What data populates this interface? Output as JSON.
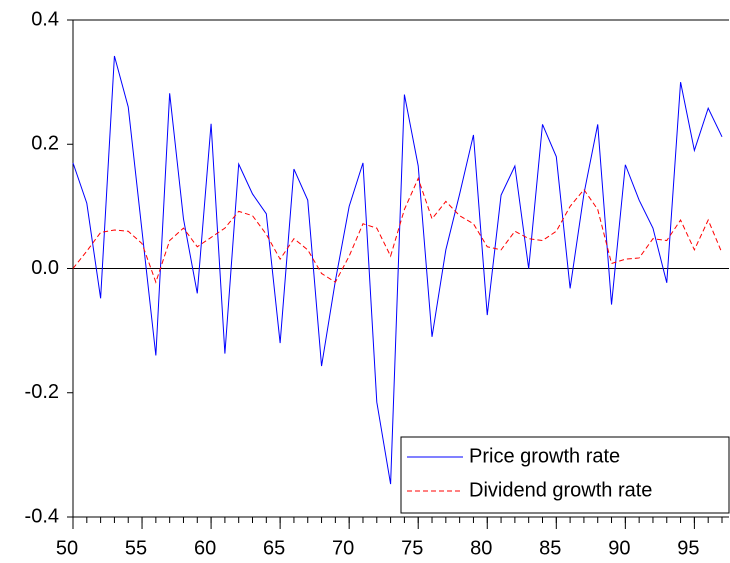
{
  "chart_data": {
    "type": "line",
    "x": [
      50,
      51,
      52,
      53,
      54,
      55,
      56,
      57,
      58,
      59,
      60,
      61,
      62,
      63,
      64,
      65,
      66,
      67,
      68,
      69,
      70,
      71,
      72,
      73,
      74,
      75,
      76,
      77,
      78,
      79,
      80,
      81,
      82,
      83,
      84,
      85,
      86,
      87,
      88,
      89,
      90,
      91,
      92,
      93,
      94,
      95,
      96,
      97
    ],
    "series": [
      {
        "name": "Price growth rate",
        "color": "#0000ff",
        "dash": "solid",
        "values": [
          0.17,
          0.105,
          -0.048,
          0.342,
          0.26,
          0.06,
          -0.14,
          0.282,
          0.08,
          -0.04,
          0.233,
          -0.137,
          0.168,
          0.12,
          0.088,
          -0.12,
          0.16,
          0.11,
          -0.157,
          -0.02,
          0.1,
          0.17,
          -0.215,
          -0.347,
          0.28,
          0.165,
          -0.11,
          0.03,
          0.12,
          0.215,
          -0.075,
          0.118,
          0.165,
          0.0,
          0.232,
          0.18,
          -0.032,
          0.12,
          0.232,
          -0.058,
          0.167,
          0.11,
          0.065,
          -0.023,
          0.3,
          0.19,
          0.258,
          0.212
        ]
      },
      {
        "name": "Dividend growth rate",
        "color": "#ff0000",
        "dash": "dashed",
        "values": [
          0.0,
          0.028,
          0.058,
          0.062,
          0.06,
          0.04,
          -0.022,
          0.045,
          0.065,
          0.035,
          0.05,
          0.065,
          0.092,
          0.085,
          0.055,
          0.015,
          0.048,
          0.03,
          -0.008,
          -0.022,
          0.02,
          0.072,
          0.065,
          0.02,
          0.095,
          0.145,
          0.08,
          0.108,
          0.085,
          0.072,
          0.035,
          0.03,
          0.06,
          0.048,
          0.045,
          0.06,
          0.1,
          0.127,
          0.095,
          0.008,
          0.015,
          0.017,
          0.048,
          0.045,
          0.078,
          0.03,
          0.078,
          0.025
        ]
      }
    ],
    "xlim": [
      50,
      97
    ],
    "xticks": [
      50,
      55,
      60,
      65,
      70,
      75,
      80,
      85,
      90,
      95
    ],
    "ylim": [
      -0.4,
      0.4
    ],
    "yticks": [
      0.4,
      0.2,
      {
        "value": 0,
        "label": "0.0"
      },
      -0.2,
      -0.4
    ],
    "zero_line": true,
    "grid": false,
    "legend": "lower right"
  }
}
